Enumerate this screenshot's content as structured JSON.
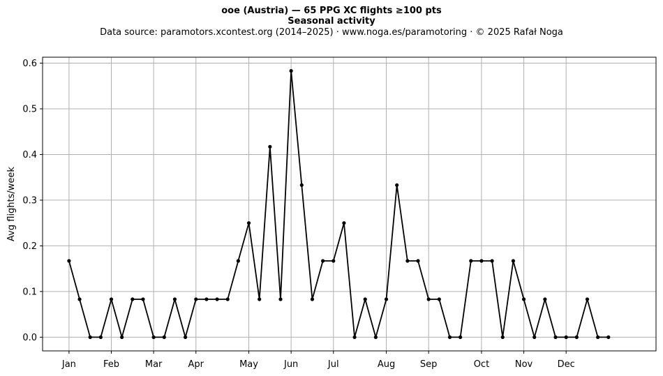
{
  "chart_data": {
    "type": "line",
    "title": "ooe (Austria)  —  65 PPG XC flights ≥100 pts",
    "subtitle": "Seasonal activity",
    "source": "Data source: paramotors.xcontest.org (2014–2025)  ·  www.noga.es/paramotoring  ·  © 2025 Rafał Noga",
    "xlabel": "",
    "ylabel": "Avg flights/week",
    "ylim": [
      -0.03,
      0.613
    ],
    "xlim": [
      -2.5,
      55.5
    ],
    "yticks": [
      0.0,
      0.1,
      0.2,
      0.3,
      0.4,
      0.5,
      0.6
    ],
    "ytick_labels": [
      "0.0",
      "0.1",
      "0.2",
      "0.3",
      "0.4",
      "0.5",
      "0.6"
    ],
    "xtick_positions": [
      0,
      4,
      8,
      12,
      17,
      21,
      25,
      30,
      34,
      39,
      43,
      47
    ],
    "xtick_labels": [
      "Jan",
      "Feb",
      "Mar",
      "Apr",
      "May",
      "Jun",
      "Jul",
      "Aug",
      "Sep",
      "Oct",
      "Nov",
      "Dec"
    ],
    "grid": true,
    "line_color": "#000000",
    "grid_color": "#b0b0b0",
    "x": [
      0,
      1,
      2,
      3,
      4,
      5,
      6,
      7,
      8,
      9,
      10,
      11,
      12,
      13,
      14,
      15,
      16,
      17,
      18,
      19,
      20,
      21,
      22,
      23,
      24,
      25,
      26,
      27,
      28,
      29,
      30,
      31,
      32,
      33,
      34,
      35,
      36,
      37,
      38,
      39,
      40,
      41,
      42,
      43,
      44,
      45,
      46,
      47,
      48,
      49,
      50,
      51
    ],
    "y": [
      0.167,
      0.083,
      0.0,
      0.0,
      0.083,
      0.0,
      0.083,
      0.083,
      0.0,
      0.0,
      0.083,
      0.0,
      0.083,
      0.083,
      0.083,
      0.083,
      0.167,
      0.25,
      0.083,
      0.417,
      0.083,
      0.583,
      0.333,
      0.083,
      0.167,
      0.167,
      0.25,
      0.0,
      0.083,
      0.0,
      0.083,
      0.333,
      0.167,
      0.167,
      0.083,
      0.083,
      0.0,
      0.0,
      0.167,
      0.167,
      0.167,
      0.0,
      0.167,
      0.083,
      0.0,
      0.083,
      0.0,
      0.0,
      0.0,
      0.083,
      0.0,
      0.0
    ]
  }
}
